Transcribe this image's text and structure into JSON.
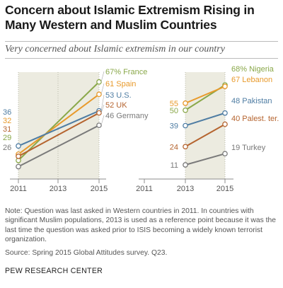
{
  "title": "Concern about Islamic Extremism Rising in Many Western and Muslim Countries",
  "subtitle": "Very concerned about Islamic extremism in our country",
  "note": "Note: Question was last asked in Western countries in 2011. In countries with significant Muslim populations, 2013 is used as a reference point because it was the last time the question was asked prior to ISIS becoming a widely known terrorist organization.",
  "source": "Source: Spring 2015 Global Attitudes survey. Q23.",
  "footer": "PEW RESEARCH CENTER",
  "colors": {
    "green": "#8aa84a",
    "orange": "#e89a2b",
    "blue": "#4f7da3",
    "brown": "#b5642f",
    "gray": "#7a7a7a",
    "band": "#ecebe0",
    "axis": "#8e8e8e"
  },
  "chart_data": [
    {
      "type": "line",
      "panel": "western",
      "x_ticks": [
        "2011",
        "2013",
        "2015"
      ],
      "x": [
        "2011",
        "2015"
      ],
      "ylim": [
        20,
        75
      ],
      "series": [
        {
          "name": "France",
          "values": [
            29,
            67
          ],
          "start_label": "29",
          "end_label": "67% France",
          "color": "#8aa84a"
        },
        {
          "name": "Spain",
          "values": [
            32,
            61
          ],
          "start_label": "32",
          "end_label": "61 Spain",
          "color": "#e89a2b"
        },
        {
          "name": "U.S.",
          "values": [
            36,
            53
          ],
          "start_label": "36",
          "end_label": "53 U.S.",
          "color": "#4f7da3"
        },
        {
          "name": "UK",
          "values": [
            31,
            52
          ],
          "start_label": "31",
          "end_label": "52 UK",
          "color": "#b5642f"
        },
        {
          "name": "Germany",
          "values": [
            26,
            46
          ],
          "start_label": "26",
          "end_label": "46 Germany",
          "color": "#7a7a7a"
        }
      ]
    },
    {
      "type": "line",
      "panel": "muslim",
      "x_ticks": [
        "2011",
        "2013",
        "2015"
      ],
      "x": [
        "2013",
        "2015"
      ],
      "ylim": [
        0,
        75
      ],
      "series": [
        {
          "name": "Nigeria",
          "values": [
            50,
            68
          ],
          "start_label": "50",
          "end_label": "68% Nigeria",
          "color": "#8aa84a"
        },
        {
          "name": "Lebanon",
          "values": [
            55,
            67
          ],
          "start_label": "55",
          "end_label": "67 Lebanon",
          "color": "#e89a2b"
        },
        {
          "name": "Pakistan",
          "values": [
            39,
            48
          ],
          "start_label": "39",
          "end_label": "48 Pakistan",
          "color": "#4f7da3"
        },
        {
          "name": "Palest. ter.",
          "values": [
            24,
            40
          ],
          "start_label": "24",
          "end_label": "40 Palest. ter.",
          "color": "#b5642f"
        },
        {
          "name": "Turkey",
          "values": [
            11,
            19
          ],
          "start_label": "11",
          "end_label": "19 Turkey",
          "color": "#7a7a7a"
        }
      ]
    }
  ]
}
